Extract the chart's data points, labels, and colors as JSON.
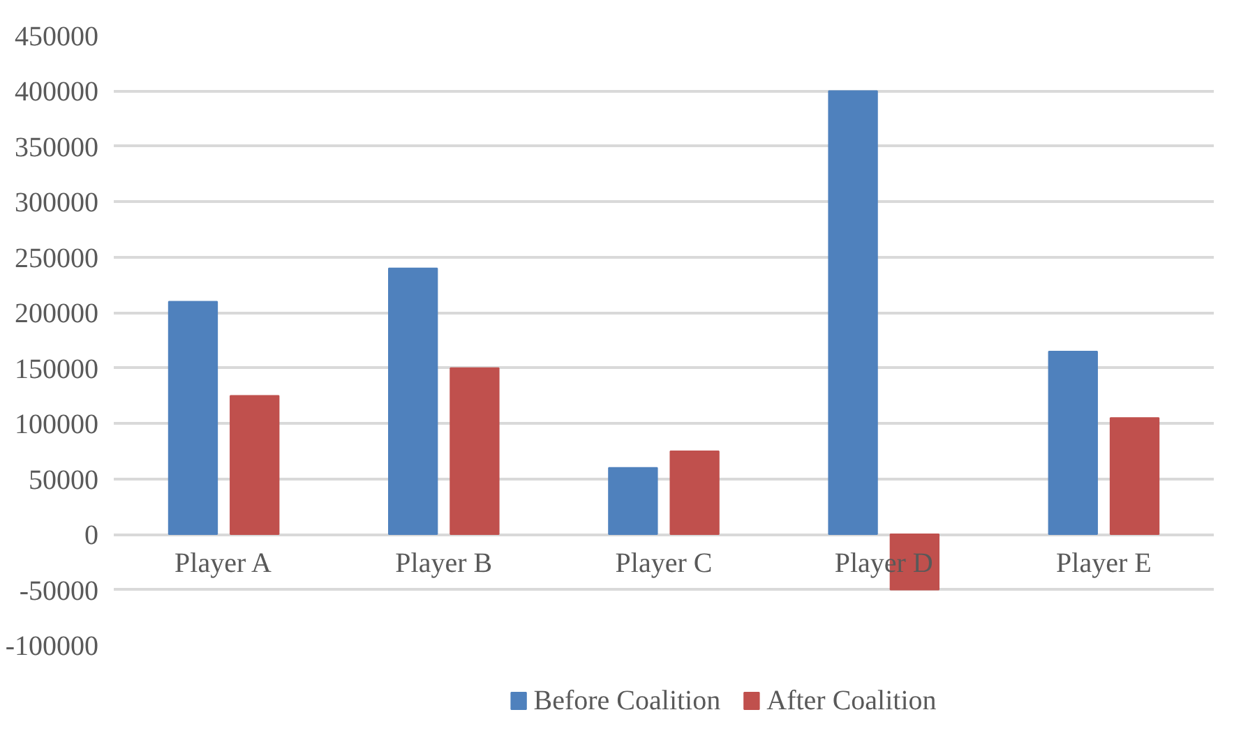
{
  "chart_data": {
    "type": "bar",
    "categories": [
      "Player A",
      "Player B",
      "Player C",
      "Player D",
      "Player E"
    ],
    "series": [
      {
        "name": "Before Coalition",
        "color": "#4f81bd",
        "values": [
          210000,
          240000,
          60000,
          400000,
          165000
        ]
      },
      {
        "name": "After Coalition",
        "color": "#c0504d",
        "values": [
          125000,
          150000,
          75000,
          -50000,
          105000
        ]
      }
    ],
    "ylim": [
      -100000,
      450000
    ],
    "yticks": [
      -100000,
      -50000,
      0,
      50000,
      100000,
      150000,
      200000,
      250000,
      300000,
      350000,
      400000,
      450000
    ],
    "grid": "y",
    "legend": "bottom"
  }
}
